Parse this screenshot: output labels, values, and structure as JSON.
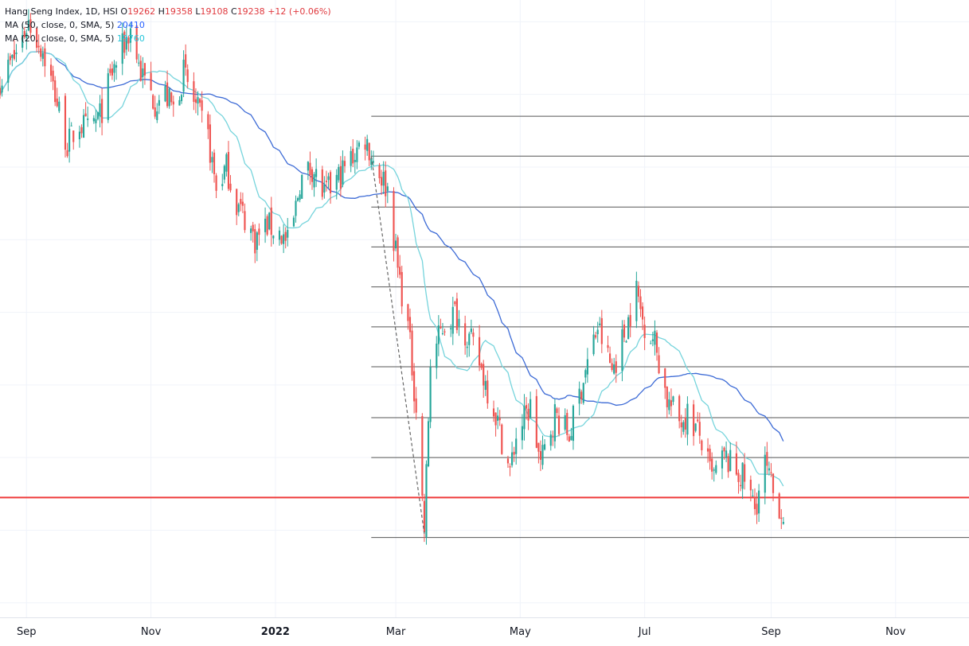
{
  "legend": {
    "symbol_line": "Hang Seng Index, 1D, HSI",
    "open_label": "O",
    "open": "19262",
    "high_label": "H",
    "high": "19358",
    "low_label": "L",
    "low": "19108",
    "close_label": "C",
    "close": "19238",
    "change": "+12 (+0.06%)",
    "ma50_label": "MA (50, close, 0, SMA, 5)",
    "ma50_value": "20410",
    "ma20_label": "MA (20, close, 0, SMA, 5)",
    "ma20_value": "19760"
  },
  "colors": {
    "up": "#26a69a",
    "down": "#ef5350",
    "ma50": "#3d6bd6",
    "ma20": "#76d4dc",
    "grid": "#f0f3fa",
    "level": "#555555",
    "support": "#ef3b3b"
  },
  "chart_data": {
    "type": "candlestick",
    "x_ticks": [
      {
        "label": "Sep",
        "date": "2021-09-01"
      },
      {
        "label": "Nov",
        "date": "2021-11-01"
      },
      {
        "label": "2022",
        "date": "2022-01-01",
        "bold": true
      },
      {
        "label": "Mar",
        "date": "2022-03-01"
      },
      {
        "label": "May",
        "date": "2022-05-01"
      },
      {
        "label": "Jul",
        "date": "2022-07-01"
      },
      {
        "label": "Sep",
        "date": "2022-09-01"
      },
      {
        "label": "Nov",
        "date": "2022-11-01"
      }
    ],
    "x_range": [
      "2021-08-19",
      "2022-12-07"
    ],
    "y_range": [
      17800,
      26300
    ],
    "horizontal_levels": [
      24700,
      24150,
      23450,
      22900,
      22350,
      21800,
      21250,
      20550,
      20000,
      18900
    ],
    "levels_start_date": "2022-02-17",
    "support_level": 19450,
    "trendline": {
      "from": [
        "2022-02-17",
        24150
      ],
      "to": [
        "2022-03-15",
        18950
      ]
    },
    "waypoints": [
      [
        "2021-08-19",
        25200
      ],
      [
        "2021-08-26",
        25500
      ],
      [
        "2021-09-02",
        26000
      ],
      [
        "2021-09-09",
        25600
      ],
      [
        "2021-09-15",
        25000
      ],
      [
        "2021-09-21",
        24300
      ],
      [
        "2021-09-27",
        24600
      ],
      [
        "2021-10-01",
        24500
      ],
      [
        "2021-10-07",
        24700
      ],
      [
        "2021-10-13",
        25300
      ],
      [
        "2021-10-19",
        25700
      ],
      [
        "2021-10-22",
        25900
      ],
      [
        "2021-10-27",
        25300
      ],
      [
        "2021-11-03",
        24900
      ],
      [
        "2021-11-08",
        25000
      ],
      [
        "2021-11-12",
        24800
      ],
      [
        "2021-11-17",
        25300
      ],
      [
        "2021-11-22",
        24900
      ],
      [
        "2021-11-29",
        24400
      ],
      [
        "2021-12-03",
        23700
      ],
      [
        "2021-12-08",
        24000
      ],
      [
        "2021-12-13",
        23500
      ],
      [
        "2021-12-17",
        23300
      ],
      [
        "2021-12-22",
        23000
      ],
      [
        "2021-12-28",
        23200
      ],
      [
        "2022-01-03",
        23100
      ],
      [
        "2022-01-08",
        22900
      ],
      [
        "2022-01-13",
        23800
      ],
      [
        "2022-01-19",
        24000
      ],
      [
        "2022-01-25",
        23600
      ],
      [
        "2022-02-02",
        23900
      ],
      [
        "2022-02-09",
        24200
      ],
      [
        "2022-02-14",
        24400
      ],
      [
        "2022-02-18",
        24100
      ],
      [
        "2022-02-25",
        23700
      ],
      [
        "2022-03-02",
        22600
      ],
      [
        "2022-03-07",
        21800
      ],
      [
        "2022-03-11",
        20700
      ],
      [
        "2022-03-15",
        19000
      ],
      [
        "2022-03-18",
        21300
      ],
      [
        "2022-03-24",
        21800
      ],
      [
        "2022-03-30",
        22000
      ],
      [
        "2022-04-05",
        21700
      ],
      [
        "2022-04-11",
        21300
      ],
      [
        "2022-04-19",
        20600
      ],
      [
        "2022-04-26",
        19800
      ],
      [
        "2022-04-29",
        20300
      ],
      [
        "2022-05-06",
        20700
      ],
      [
        "2022-05-11",
        19900
      ],
      [
        "2022-05-18",
        20600
      ],
      [
        "2022-05-25",
        20300
      ],
      [
        "2022-06-01",
        21100
      ],
      [
        "2022-06-08",
        21800
      ],
      [
        "2022-06-15",
        21200
      ],
      [
        "2022-06-21",
        21700
      ],
      [
        "2022-06-27",
        22300
      ],
      [
        "2022-06-30",
        21900
      ],
      [
        "2022-07-06",
        21600
      ],
      [
        "2022-07-12",
        20800
      ],
      [
        "2022-07-18",
        20500
      ],
      [
        "2022-07-22",
        20600
      ],
      [
        "2022-07-28",
        20300
      ],
      [
        "2022-08-03",
        19700
      ],
      [
        "2022-08-09",
        20000
      ],
      [
        "2022-08-15",
        19800
      ],
      [
        "2022-08-19",
        19700
      ],
      [
        "2022-08-24",
        19300
      ],
      [
        "2022-08-29",
        19900
      ],
      [
        "2022-09-02",
        19500
      ],
      [
        "2022-09-07",
        19238
      ]
    ]
  }
}
